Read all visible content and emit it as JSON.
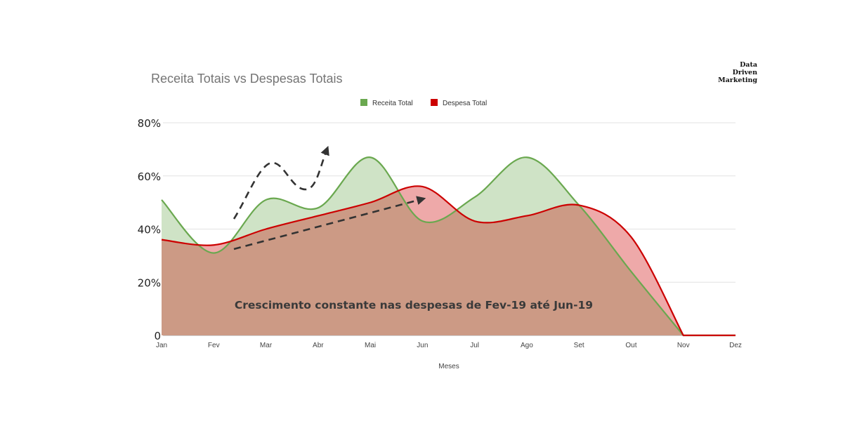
{
  "brand": {
    "line1": "Data",
    "line2": "Driven",
    "line3": "Marketing"
  },
  "chart_data": {
    "type": "area",
    "title": "Receita Totais vs Despesas Totais",
    "xlabel": "Meses",
    "ylabel": "",
    "categories": [
      "Jan",
      "Fev",
      "Mar",
      "Abr",
      "Mai",
      "Jun",
      "Jul",
      "Ago",
      "Set",
      "Out",
      "Nov",
      "Dez"
    ],
    "y_ticks": [
      "0",
      "20%",
      "40%",
      "60%",
      "80%"
    ],
    "ylim": [
      0,
      80
    ],
    "grid": true,
    "legend_position": "top-center",
    "series": [
      {
        "name": "Receita Total",
        "color": "#6aa84f",
        "fill": "#cfe3c6",
        "values": [
          51,
          31,
          51,
          48,
          67,
          43,
          52,
          67,
          49,
          24,
          0,
          null
        ]
      },
      {
        "name": "Despesa Total",
        "color": "#cc0000",
        "fill": "#eea9a9",
        "values": [
          36,
          34,
          40,
          45,
          50,
          56,
          43,
          45,
          49,
          37,
          0,
          null
        ]
      }
    ],
    "overlap_fill": "#cc9a85",
    "annotation": "Crescimento constante nas despesas de Fev-19 até Jun-19"
  }
}
